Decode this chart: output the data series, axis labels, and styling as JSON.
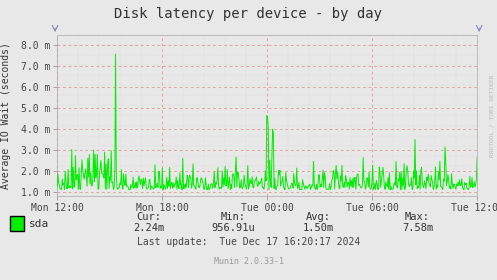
{
  "title": "Disk latency per device - by day",
  "ylabel": "Average IO Wait (seconds)",
  "bg_color": "#e8e8e8",
  "plot_bg_color": "#e8e8e8",
  "line_color": "#00ee00",
  "ylim_min": 0.0008,
  "ylim_max": 0.0085,
  "yticks": [
    0.001,
    0.002,
    0.003,
    0.004,
    0.005,
    0.006,
    0.007,
    0.008
  ],
  "ytick_labels": [
    "1.0 m",
    "2.0 m",
    "3.0 m",
    "4.0 m",
    "5.0 m",
    "6.0 m",
    "7.0 m",
    "8.0 m"
  ],
  "xtick_labels": [
    "Mon 12:00",
    "Mon 18:00",
    "Tue 00:00",
    "Tue 06:00",
    "Tue 12:00"
  ],
  "xtick_positions": [
    0.0,
    0.25,
    0.5,
    0.75,
    1.0
  ],
  "legend_label": "sda",
  "cur": "2.24m",
  "min_val": "956.91u",
  "avg": "1.50m",
  "max_val": "7.58m",
  "last_update": "Tue Dec 17 16:20:17 2024",
  "munin_version": "Munin 2.0.33-1",
  "watermark": "RRDTOOL / TOBI OETIKER",
  "title_fontsize": 10,
  "axis_label_fontsize": 7,
  "tick_fontsize": 7,
  "stats_fontsize": 7.5
}
